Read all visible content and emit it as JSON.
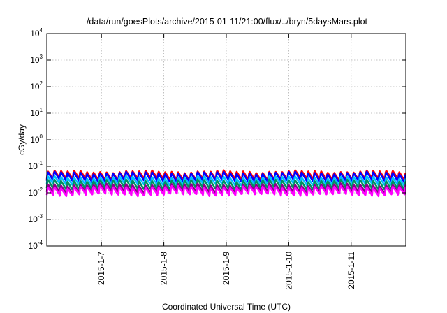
{
  "chart_data": {
    "type": "line",
    "title": "/data/run/goesPlots/archive/2015-01-11/21:00/flux/../bryn/5daysMars.plot",
    "xlabel": "Coordinated Universal Time (UTC)",
    "ylabel": "cGy/day",
    "y_scale": "log",
    "ylim": [
      0.0001,
      10000
    ],
    "y_ticks": [
      {
        "base": "10",
        "exp": "-4"
      },
      {
        "base": "10",
        "exp": "-3"
      },
      {
        "base": "10",
        "exp": "-2"
      },
      {
        "base": "10",
        "exp": "-1"
      },
      {
        "base": "10",
        "exp": "0"
      },
      {
        "base": "10",
        "exp": "1"
      },
      {
        "base": "10",
        "exp": "2"
      },
      {
        "base": "10",
        "exp": "3"
      },
      {
        "base": "10",
        "exp": "4"
      }
    ],
    "xlim": [
      "2015-01-06 03:00",
      "2015-01-11 21:00"
    ],
    "x_ticks": [
      "2015-1-7",
      "2015-1-8",
      "2015-1-9",
      "2015-1-10",
      "2015-1-11"
    ],
    "x_tick_dates": [
      "2015-01-07",
      "2015-01-08",
      "2015-01-09",
      "2015-01-10",
      "2015-01-11"
    ],
    "grid": true,
    "legend": "none",
    "cycle_hours": 2.5,
    "series": [
      {
        "color": "#ff0000",
        "peak": 0.065,
        "trough": 0.032
      },
      {
        "color": "#0000ff",
        "peak": 0.058,
        "trough": 0.027
      },
      {
        "color": "#00c0ff",
        "peak": 0.04,
        "trough": 0.02
      },
      {
        "color": "#009060",
        "peak": 0.03,
        "trough": 0.014
      },
      {
        "color": "#8b008b",
        "peak": 0.021,
        "trough": 0.0105
      },
      {
        "color": "#ff00ff",
        "peak": 0.017,
        "trough": 0.0085
      }
    ]
  }
}
